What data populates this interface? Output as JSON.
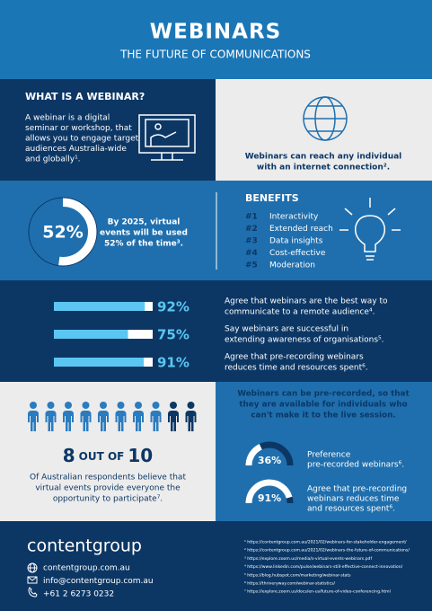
{
  "header": {
    "title": "WEBINARS",
    "subtitle": "THE FUTURE OF COMMUNICATIONS"
  },
  "what_is": {
    "heading": "WHAT IS A WEBINAR?",
    "lines": [
      "A webinar is a digital",
      "seminar or workshop, that",
      "allows you to engage target",
      "audiences Australia-wide",
      "and globally¹."
    ]
  },
  "reach": {
    "lines": [
      "Webinars can reach any individual",
      "with an internet connection²."
    ]
  },
  "forecast": {
    "stat": {
      "value": 52,
      "label": "52%"
    },
    "lines": [
      "By 2025, virtual",
      "events will be used",
      "52% of the time³."
    ]
  },
  "benefits": {
    "heading": "BENEFITS",
    "items": [
      {
        "number": "#1",
        "label": "Interactivity"
      },
      {
        "number": "#2",
        "label": "Extended reach"
      },
      {
        "number": "#3",
        "label": "Data insights"
      },
      {
        "number": "#4",
        "label": "Cost-effective"
      },
      {
        "number": "#5",
        "label": "Moderation"
      }
    ]
  },
  "agreement": {
    "items": [
      {
        "value": 92,
        "label": "92%",
        "lines": [
          "Agree that webinars are the best way to",
          "communicate to a remote audience⁴."
        ]
      },
      {
        "value": 75,
        "label": "75%",
        "lines": [
          "Say webinars are successful in",
          "extending awareness of organisations⁵."
        ]
      },
      {
        "value": 91,
        "label": "91%",
        "lines": [
          "Agree that pre-recording webinars",
          "reduces time and resources spent⁶."
        ]
      }
    ]
  },
  "respondents": {
    "count": 8,
    "connector": "OUT OF",
    "total": 10,
    "lines": [
      "Of Australian respondents believe that",
      "virtual events provide everyone the",
      "opportunity to participate⁷."
    ]
  },
  "prerecorded": {
    "lines": [
      "Webinars can be pre-recorded, so that",
      "they are available for individuals who",
      "can't make it to the live session."
    ],
    "items": [
      {
        "value": 36,
        "label": "36%",
        "lines": [
          "Preference",
          "pre-recorded webinars⁶."
        ]
      },
      {
        "value": 91,
        "label": "91%",
        "lines": [
          "Agree that pre-recording",
          "webinars reduces time",
          "and resources spent⁶."
        ]
      }
    ]
  },
  "footer": {
    "brand": "contentgroup",
    "contacts": [
      "contentgroup.com.au",
      "info@contentgroup.com.au",
      "+61 2 6273 0232"
    ],
    "footnotes": [
      "¹ https://contentgroup.com.au/2021/02/webinars-for-stakeholder-engagement/",
      "² https://contentgroup.com.au/2021/02/webinars-the-future-of-communications/",
      "³ https://explore.zoom.us/media/s-virtual-events-webinars.pdf",
      "⁴ https://www.linkedin.com/pulse/webinars-still-effective-connect-innovation/",
      "⁵ https://blog.hubspot.com/marketing/webinar-stats",
      "⁶ https://thriveryway.com/webinar-statistics/",
      "⁷ https://explore.zoom.us/docs/en-us/future-of-video-conferencing.html"
    ]
  }
}
